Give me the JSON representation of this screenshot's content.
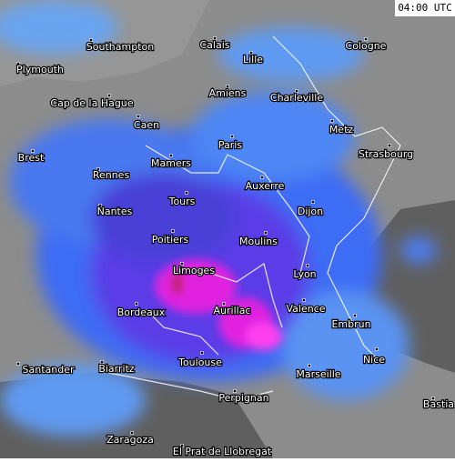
{
  "time": "04:00 UTC",
  "cities": [
    "Southampton",
    "Calais",
    "Lille",
    "Cologne",
    "Plymouth",
    "Cap de la Hague",
    "Amiens",
    "Charleville",
    "Caen",
    "Metz",
    "Paris",
    "Brest",
    "Mamers",
    "Strasbourg",
    "Rennes",
    "Auxerre",
    "Tours",
    "Nantes",
    "Dijon",
    "Poitiers",
    "Moulins",
    "Limoges",
    "Lyon",
    "Bordeaux",
    "Aurillac",
    "Valence",
    "Embrun",
    "Nice",
    "Toulouse",
    "Santander",
    "Biarritz",
    "Marseille",
    "Bastia",
    "Perpignan",
    "Zaragoza",
    "El Prat de Llobregat"
  ]
}
